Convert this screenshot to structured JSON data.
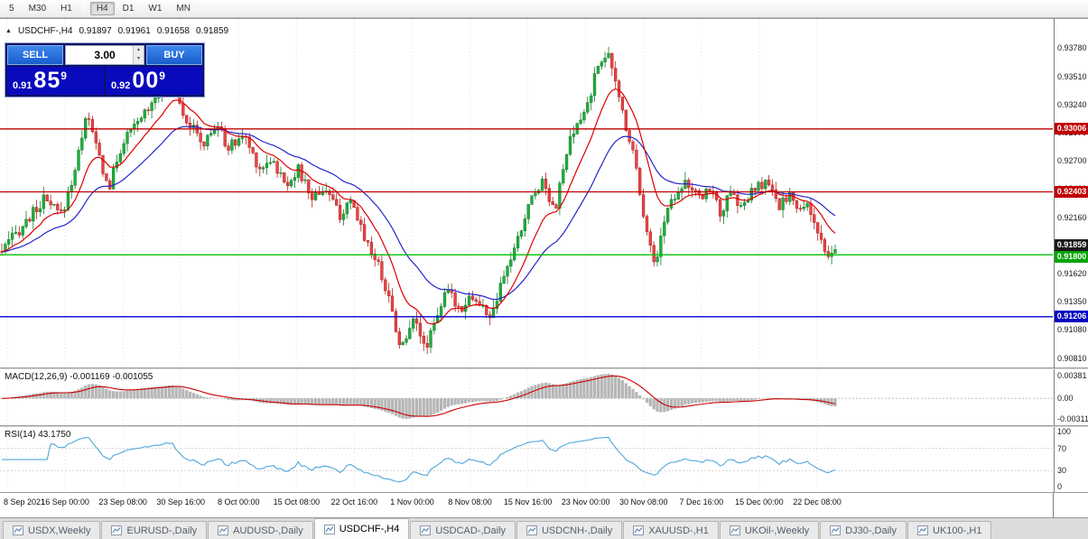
{
  "toolbar": {
    "items": [
      "5",
      "M30",
      "H1",
      "H4",
      "D1",
      "W1",
      "MN"
    ],
    "active_index": 3
  },
  "chart_header": {
    "collapse_icon": "▲",
    "symbol_period": "USDCHF-,H4",
    "open": "0.91897",
    "high": "0.91961",
    "low": "0.91658",
    "close": "0.91859"
  },
  "trade_panel": {
    "sell_label": "SELL",
    "buy_label": "BUY",
    "volume": "3.00",
    "spin_up_icon": "▴",
    "spin_down_icon": "▾",
    "sell_price_prefix": "0.91",
    "sell_price_big": "85",
    "sell_price_sup": "9",
    "buy_price_prefix": "0.92",
    "buy_price_big": "00",
    "buy_price_sup": "9"
  },
  "price_axis": {
    "tags": [
      {
        "price": 0.93006,
        "text": "0.93006",
        "bg": "#c00000",
        "nudge": 0
      },
      {
        "price": 0.92403,
        "text": "0.92403",
        "bg": "#c00000",
        "nudge": 0
      },
      {
        "price": 0.91859,
        "text": "0.91859",
        "bg": "#1a1a1a",
        "nudge": -4
      },
      {
        "price": 0.918,
        "text": "0.91800",
        "bg": "#00a400",
        "nudge": 2
      },
      {
        "price": 0.91206,
        "text": "0.91206",
        "bg": "#0000c0",
        "nudge": 0
      }
    ]
  },
  "chart_data": [
    {
      "type": "candlestick",
      "title": "USDCHF-,H4",
      "ohlc_display": {
        "open": 0.91897,
        "high": 0.91961,
        "low": 0.91658,
        "close": 0.91859
      },
      "y_range": [
        0.9072,
        0.9406
      ],
      "y_ticks": [
        "0.93780",
        "0.93510",
        "0.93240",
        "0.92970",
        "0.92700",
        "0.92430",
        "0.92160",
        "0.91890",
        "0.91620",
        "0.91350",
        "0.91080",
        "0.90810"
      ],
      "x_ticks": [
        "8 Sep 2021",
        "16 Sep 00:00",
        "23 Sep 08:00",
        "30 Sep 16:00",
        "8 Oct 00:00",
        "15 Oct 08:00",
        "22 Oct 16:00",
        "1 Nov 00:00",
        "8 Nov 08:00",
        "15 Nov 16:00",
        "23 Nov 00:00",
        "30 Nov 08:00",
        "7 Dec 16:00",
        "15 Dec 00:00",
        "22 Dec 08:00"
      ],
      "horizontal_levels": [
        {
          "price": 0.93006,
          "color": "#c00000"
        },
        {
          "price": 0.92403,
          "color": "#c00000"
        },
        {
          "price": 0.918,
          "color": "#00c000"
        },
        {
          "price": 0.91206,
          "color": "#0000d0"
        }
      ],
      "candle_count": 240,
      "price_waypoints": [
        [
          0.0,
          0.9183
        ],
        [
          0.022,
          0.9205
        ],
        [
          0.05,
          0.9232
        ],
        [
          0.072,
          0.9218
        ],
        [
          0.09,
          0.9268
        ],
        [
          0.101,
          0.9316
        ],
        [
          0.112,
          0.9288
        ],
        [
          0.128,
          0.9242
        ],
        [
          0.145,
          0.9288
        ],
        [
          0.16,
          0.9302
        ],
        [
          0.18,
          0.9328
        ],
        [
          0.204,
          0.935
        ],
        [
          0.22,
          0.9312
        ],
        [
          0.242,
          0.9285
        ],
        [
          0.258,
          0.9305
        ],
        [
          0.272,
          0.9282
        ],
        [
          0.29,
          0.9295
        ],
        [
          0.31,
          0.9262
        ],
        [
          0.323,
          0.9273
        ],
        [
          0.34,
          0.9247
        ],
        [
          0.355,
          0.9262
        ],
        [
          0.372,
          0.9235
        ],
        [
          0.388,
          0.9245
        ],
        [
          0.405,
          0.9218
        ],
        [
          0.42,
          0.9228
        ],
        [
          0.437,
          0.9195
        ],
        [
          0.453,
          0.9168
        ],
        [
          0.466,
          0.9135
        ],
        [
          0.475,
          0.91
        ],
        [
          0.484,
          0.9092
        ],
        [
          0.495,
          0.9128
        ],
        [
          0.507,
          0.9088
        ],
        [
          0.52,
          0.912
        ],
        [
          0.535,
          0.9145
        ],
        [
          0.55,
          0.9128
        ],
        [
          0.562,
          0.9142
        ],
        [
          0.572,
          0.9132
        ],
        [
          0.588,
          0.912
        ],
        [
          0.605,
          0.9165
        ],
        [
          0.62,
          0.9195
        ],
        [
          0.632,
          0.9228
        ],
        [
          0.648,
          0.9252
        ],
        [
          0.664,
          0.9224
        ],
        [
          0.68,
          0.9285
        ],
        [
          0.702,
          0.9322
        ],
        [
          0.718,
          0.9368
        ],
        [
          0.726,
          0.9374
        ],
        [
          0.738,
          0.934
        ],
        [
          0.75,
          0.93
        ],
        [
          0.76,
          0.9272
        ],
        [
          0.772,
          0.921
        ],
        [
          0.783,
          0.917
        ],
        [
          0.8,
          0.9228
        ],
        [
          0.819,
          0.9252
        ],
        [
          0.837,
          0.9232
        ],
        [
          0.85,
          0.9246
        ],
        [
          0.862,
          0.922
        ],
        [
          0.875,
          0.9238
        ],
        [
          0.888,
          0.9225
        ],
        [
          0.902,
          0.9242
        ],
        [
          0.919,
          0.925
        ],
        [
          0.932,
          0.9224
        ],
        [
          0.945,
          0.924
        ],
        [
          0.956,
          0.9218
        ],
        [
          0.966,
          0.9232
        ],
        [
          0.978,
          0.9205
        ],
        [
          0.99,
          0.9172
        ],
        [
          1.0,
          0.9186
        ]
      ],
      "colors": {
        "up": "#1fae3d",
        "up_stroke": "#157a2a",
        "down": "#e64545",
        "down_stroke": "#b02020",
        "ma_red": "#dd0000",
        "ma_blue": "#2424cc",
        "grid": "#e4e4e4"
      },
      "ma_periods": {
        "red": 12,
        "blue": 30
      }
    },
    {
      "type": "histogram_line",
      "name": "MACD",
      "label": "MACD(12,26,9) -0.001169 -0.001055",
      "params": "12,26,9",
      "macd_value": -0.001169,
      "signal_value": -0.001055,
      "y_ticks": [
        "0.00381",
        "0.00",
        "-0.00311"
      ],
      "histogram_color": "#b6b6b6",
      "signal_color": "#cc0000"
    },
    {
      "type": "line",
      "name": "RSI",
      "label": "RSI(14) 43.1750",
      "period": 14,
      "value": 43.175,
      "y_ticks": [
        "100",
        "70",
        "30",
        "0"
      ],
      "overbought": 70,
      "oversold": 30,
      "line_color": "#3f9fd8"
    }
  ],
  "tabs": {
    "active_index": 3,
    "items": [
      {
        "label": "USDX,Weekly"
      },
      {
        "label": "EURUSD-,Daily"
      },
      {
        "label": "AUDUSD-,Daily"
      },
      {
        "label": "USDCHF-,H4"
      },
      {
        "label": "USDCAD-,Daily"
      },
      {
        "label": "USDCNH-,Daily"
      },
      {
        "label": "XAUUSD-,H1"
      },
      {
        "label": "UKOil-,Weekly"
      },
      {
        "label": "DJ30-,Daily"
      },
      {
        "label": "UK100-,H1"
      }
    ]
  }
}
